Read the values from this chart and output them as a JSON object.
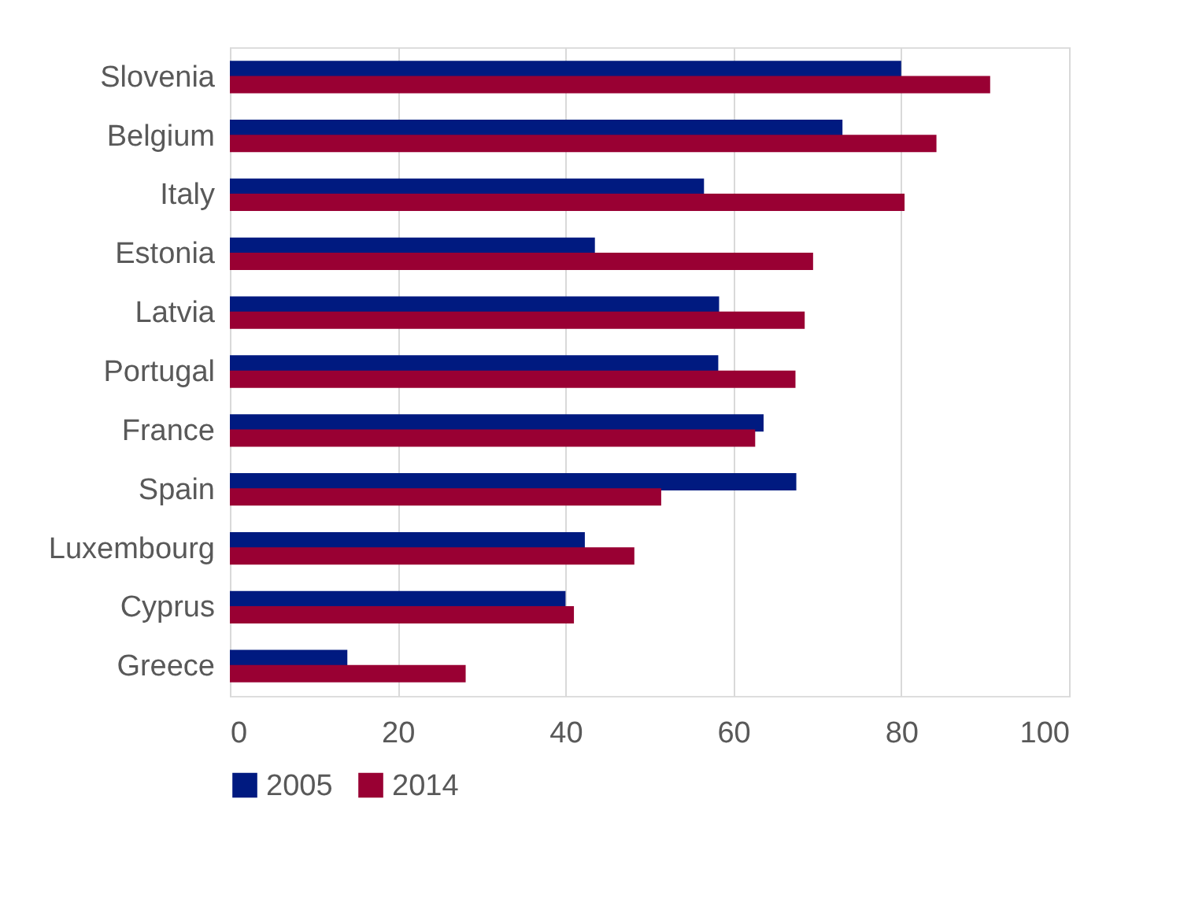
{
  "chart_data": {
    "type": "bar",
    "orientation": "horizontal",
    "categories": [
      "Slovenia",
      "Belgium",
      "Italy",
      "Estonia",
      "Latvia",
      "Portugal",
      "France",
      "Spain",
      "Luxembourg",
      "Cyprus",
      "Greece"
    ],
    "series": [
      {
        "name": "2005",
        "color": "#001a80",
        "values": [
          80,
          73,
          56.5,
          43.5,
          58.3,
          58.2,
          63.6,
          67.5,
          42.3,
          40,
          14
        ]
      },
      {
        "name": "2014",
        "color": "#990033",
        "values": [
          90.6,
          84.2,
          80.4,
          69.5,
          68.5,
          67.4,
          62.6,
          51.4,
          48.2,
          41,
          28.1
        ]
      }
    ],
    "xlim": [
      0,
      100
    ],
    "xticks": [
      0,
      20,
      40,
      60,
      80,
      100
    ],
    "grid": "x",
    "legend": "bottom"
  }
}
